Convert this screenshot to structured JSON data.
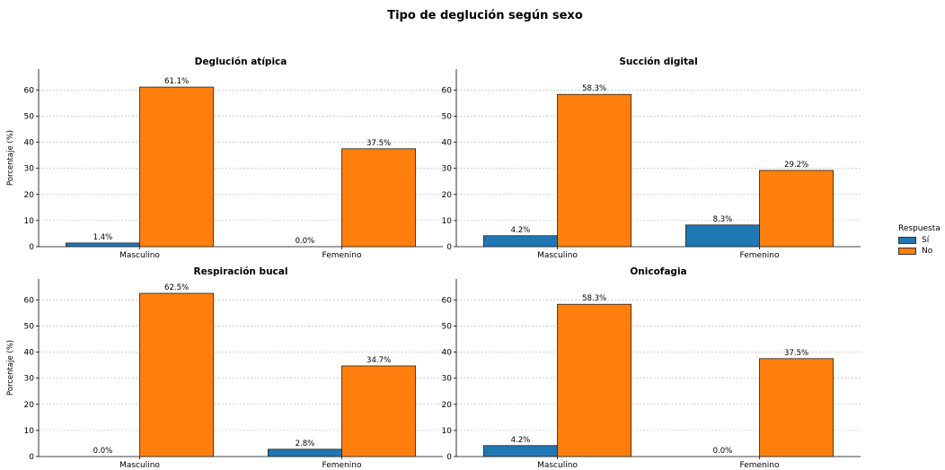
{
  "figure": {
    "suptitle": "Tipo de deglución según sexo",
    "ylabel": "Porcentaje (%)",
    "legend": {
      "title": "Respuesta",
      "entries": [
        {
          "label": "Sí",
          "color": "#1f77b4"
        },
        {
          "label": "No",
          "color": "#ff7f0e"
        }
      ],
      "placement": "center-right, outside plots"
    }
  },
  "chart_data": [
    {
      "type": "bar",
      "title": "Deglución atípica",
      "categories": [
        "Masculino",
        "Femenino"
      ],
      "series": [
        {
          "name": "Sí",
          "values": [
            1.4,
            0.0
          ],
          "labels": [
            "1.4%",
            "0.0%"
          ]
        },
        {
          "name": "No",
          "values": [
            61.1,
            37.5
          ],
          "labels": [
            "61.1%",
            "37.5%"
          ]
        }
      ],
      "ylabel": "Porcentaje (%)",
      "ylim": [
        0,
        68
      ],
      "yticks": [
        0,
        10,
        20,
        30,
        40,
        50,
        60
      ],
      "grid": "horizontal dotted"
    },
    {
      "type": "bar",
      "title": "Succión digital",
      "categories": [
        "Masculino",
        "Femenino"
      ],
      "series": [
        {
          "name": "Sí",
          "values": [
            4.2,
            8.3
          ],
          "labels": [
            "4.2%",
            "8.3%"
          ]
        },
        {
          "name": "No",
          "values": [
            58.3,
            29.2
          ],
          "labels": [
            "58.3%",
            "29.2%"
          ]
        }
      ],
      "ylabel": "",
      "ylim": [
        0,
        68
      ],
      "yticks": [
        0,
        10,
        20,
        30,
        40,
        50,
        60
      ],
      "grid": "horizontal dotted"
    },
    {
      "type": "bar",
      "title": "Respiración bucal",
      "categories": [
        "Masculino",
        "Femenino"
      ],
      "series": [
        {
          "name": "Sí",
          "values": [
            0.0,
            2.8
          ],
          "labels": [
            "0.0%",
            "2.8%"
          ]
        },
        {
          "name": "No",
          "values": [
            62.5,
            34.7
          ],
          "labels": [
            "62.5%",
            "34.7%"
          ]
        }
      ],
      "ylabel": "Porcentaje (%)",
      "ylim": [
        0,
        68
      ],
      "yticks": [
        0,
        10,
        20,
        30,
        40,
        50,
        60
      ],
      "grid": "horizontal dotted"
    },
    {
      "type": "bar",
      "title": "Onicofagia",
      "categories": [
        "Masculino",
        "Femenino"
      ],
      "series": [
        {
          "name": "Sí",
          "values": [
            4.2,
            0.0
          ],
          "labels": [
            "4.2%",
            "0.0%"
          ]
        },
        {
          "name": "No",
          "values": [
            58.3,
            37.5
          ],
          "labels": [
            "58.3%",
            "37.5%"
          ]
        }
      ],
      "ylabel": "",
      "ylim": [
        0,
        68
      ],
      "yticks": [
        0,
        10,
        20,
        30,
        40,
        50,
        60
      ],
      "grid": "horizontal dotted"
    }
  ]
}
